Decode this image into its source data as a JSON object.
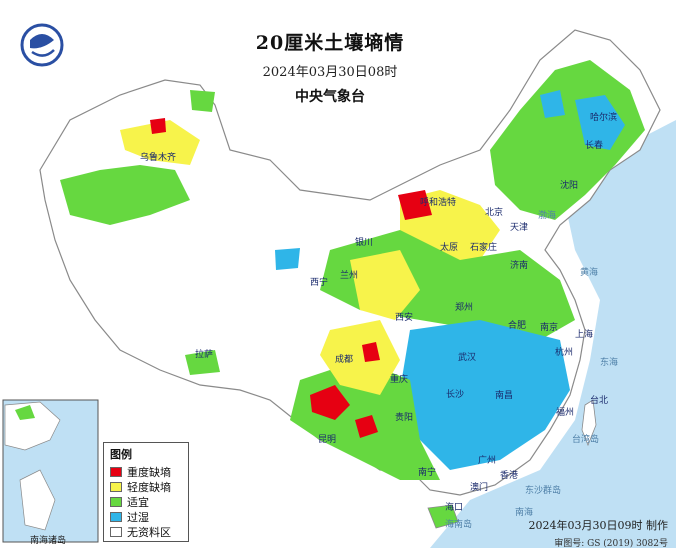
{
  "header": {
    "title": "20厘米土壤墒情",
    "datetime": "2024年03月30日08时",
    "agency": "中央气象台"
  },
  "legend": {
    "title": "图例",
    "items": [
      {
        "label": "重度缺墒",
        "color": "#e60012"
      },
      {
        "label": "轻度缺墒",
        "color": "#f7f34b"
      },
      {
        "label": "适宜",
        "color": "#66d840"
      },
      {
        "label": "过湿",
        "color": "#2fb5e8"
      },
      {
        "label": "无资料区",
        "color": "#ffffff"
      }
    ]
  },
  "footer": {
    "made": "2024年03月30日09时 制作",
    "approval": "审图号: GS (2019) 3082号"
  },
  "inset": {
    "label": "南海诸岛"
  },
  "colors": {
    "sea": "#bfe0f4",
    "land_nodata": "#ffffff",
    "border": "#8a8a8a",
    "province_border": "#b5b5b5"
  },
  "cities": [
    {
      "name": "哈尔滨"
    },
    {
      "name": "长春"
    },
    {
      "name": "沈阳"
    },
    {
      "name": "北京"
    },
    {
      "name": "天津"
    },
    {
      "name": "石家庄"
    },
    {
      "name": "济南"
    },
    {
      "name": "太原"
    },
    {
      "name": "呼和浩特"
    },
    {
      "name": "银川"
    },
    {
      "name": "西宁"
    },
    {
      "name": "兰州"
    },
    {
      "name": "西安"
    },
    {
      "name": "郑州"
    },
    {
      "name": "合肥"
    },
    {
      "name": "南京"
    },
    {
      "name": "上海"
    },
    {
      "name": "杭州"
    },
    {
      "name": "武汉"
    },
    {
      "name": "成都"
    },
    {
      "name": "重庆"
    },
    {
      "name": "长沙"
    },
    {
      "name": "南昌"
    },
    {
      "name": "福州"
    },
    {
      "name": "贵阳"
    },
    {
      "name": "昆明"
    },
    {
      "name": "南宁"
    },
    {
      "name": "广州"
    },
    {
      "name": "香港"
    },
    {
      "name": "澳门"
    },
    {
      "name": "海口"
    },
    {
      "name": "台北"
    },
    {
      "name": "拉萨"
    },
    {
      "name": "乌鲁木齐"
    }
  ],
  "seas": [
    {
      "name": "东海"
    },
    {
      "name": "黄海"
    },
    {
      "name": "南海"
    },
    {
      "name": "台湾岛"
    },
    {
      "name": "东沙群岛"
    },
    {
      "name": "海南岛"
    },
    {
      "name": "渤海"
    }
  ]
}
